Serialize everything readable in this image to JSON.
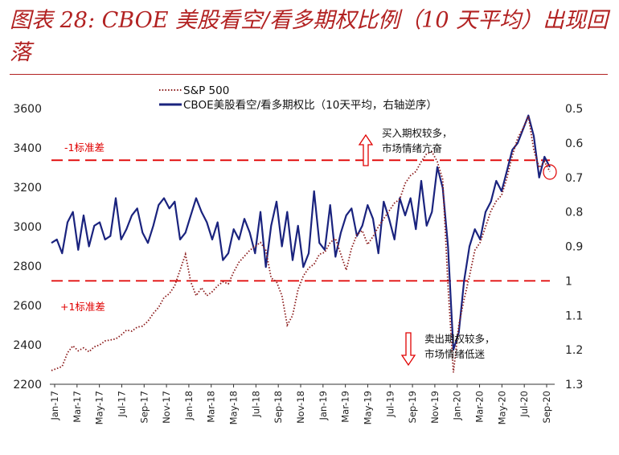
{
  "page": {
    "title": "图表 28: CBOE 美股看空/看多期权比例（10 天平均）出现回落"
  },
  "chart_data": {
    "type": "line",
    "title": "图表 28: CBOE 美股看空/看多期权比例（10 天平均）出现回落",
    "legend": [
      {
        "name": "S&P 500",
        "style": "dotted",
        "color": "#8b1a1a"
      },
      {
        "name": "CBOE美股看空/看多期权比（10天平均，右轴逆序）",
        "style": "solid",
        "color": "#1a237e"
      }
    ],
    "left_axis": {
      "min": 2200,
      "max": 3600,
      "ticks": [
        "3600",
        "3400",
        "3200",
        "3000",
        "2800",
        "2600",
        "2400",
        "2200"
      ]
    },
    "right_axis": {
      "min": 0.5,
      "max": 1.3,
      "inverted": true,
      "ticks": [
        "0.5",
        "0.6",
        "0.7",
        "0.8",
        "0.9",
        "1",
        "1.1",
        "1.2",
        "1.3"
      ]
    },
    "x_ticks": [
      "Jan-17",
      "Mar-17",
      "May-17",
      "Jul-17",
      "Sep-17",
      "Nov-17",
      "Jan-18",
      "Mar-18",
      "May-18",
      "Jul-18",
      "Sep-18",
      "Nov-18",
      "Jan-19",
      "Mar-19",
      "May-19",
      "Jul-19",
      "Sep-19",
      "Nov-19",
      "Jan-20",
      "Mar-20",
      "May-20",
      "Jul-20",
      "Sep-20"
    ],
    "reference_lines": [
      {
        "label": "-1标准差",
        "right_value": 0.65
      },
      {
        "label": "+1标准差",
        "right_value": 1.0
      }
    ],
    "annotations": {
      "top": [
        "买入期权较多，",
        "市场情绪亢奋"
      ],
      "bottom": [
        "卖出期权较多，",
        "市场情绪低迷"
      ]
    },
    "sp500": [
      [
        0,
        2270
      ],
      [
        1,
        2280
      ],
      [
        2,
        2290
      ],
      [
        3,
        2360
      ],
      [
        4,
        2395
      ],
      [
        5,
        2370
      ],
      [
        6,
        2385
      ],
      [
        7,
        2365
      ],
      [
        8,
        2390
      ],
      [
        9,
        2400
      ],
      [
        10,
        2420
      ],
      [
        11,
        2425
      ],
      [
        12,
        2430
      ],
      [
        13,
        2450
      ],
      [
        14,
        2475
      ],
      [
        15,
        2470
      ],
      [
        16,
        2490
      ],
      [
        17,
        2495
      ],
      [
        18,
        2520
      ],
      [
        19,
        2560
      ],
      [
        20,
        2590
      ],
      [
        21,
        2640
      ],
      [
        22,
        2660
      ],
      [
        23,
        2700
      ],
      [
        24,
        2780
      ],
      [
        25,
        2860
      ],
      [
        26,
        2720
      ],
      [
        27,
        2650
      ],
      [
        28,
        2690
      ],
      [
        29,
        2650
      ],
      [
        30,
        2670
      ],
      [
        31,
        2700
      ],
      [
        32,
        2720
      ],
      [
        33,
        2710
      ],
      [
        34,
        2770
      ],
      [
        35,
        2820
      ],
      [
        36,
        2850
      ],
      [
        37,
        2880
      ],
      [
        38,
        2900
      ],
      [
        39,
        2920
      ],
      [
        40,
        2880
      ],
      [
        41,
        2740
      ],
      [
        42,
        2720
      ],
      [
        43,
        2650
      ],
      [
        44,
        2500
      ],
      [
        45,
        2550
      ],
      [
        46,
        2680
      ],
      [
        47,
        2750
      ],
      [
        48,
        2790
      ],
      [
        49,
        2810
      ],
      [
        50,
        2860
      ],
      [
        51,
        2870
      ],
      [
        52,
        2920
      ],
      [
        53,
        2940
      ],
      [
        54,
        2860
      ],
      [
        55,
        2780
      ],
      [
        56,
        2890
      ],
      [
        57,
        2960
      ],
      [
        58,
        2980
      ],
      [
        59,
        2910
      ],
      [
        60,
        2950
      ],
      [
        61,
        3000
      ],
      [
        62,
        3040
      ],
      [
        63,
        3080
      ],
      [
        64,
        3120
      ],
      [
        65,
        3140
      ],
      [
        66,
        3220
      ],
      [
        67,
        3260
      ],
      [
        68,
        3280
      ],
      [
        69,
        3330
      ],
      [
        70,
        3370
      ],
      [
        71,
        3380
      ],
      [
        72,
        3330
      ],
      [
        73,
        3240
      ],
      [
        74,
        2700
      ],
      [
        75,
        2260
      ],
      [
        76,
        2500
      ],
      [
        77,
        2630
      ],
      [
        78,
        2750
      ],
      [
        79,
        2880
      ],
      [
        80,
        2920
      ],
      [
        81,
        3000
      ],
      [
        82,
        3080
      ],
      [
        83,
        3130
      ],
      [
        84,
        3160
      ],
      [
        85,
        3250
      ],
      [
        86,
        3360
      ],
      [
        87,
        3450
      ],
      [
        88,
        3500
      ],
      [
        89,
        3560
      ],
      [
        90,
        3390
      ],
      [
        91,
        3300
      ],
      [
        92,
        3330
      ],
      [
        93,
        3280
      ]
    ],
    "put_call_ratio": [
      [
        0,
        0.89
      ],
      [
        1,
        0.88
      ],
      [
        2,
        0.92
      ],
      [
        3,
        0.83
      ],
      [
        4,
        0.8
      ],
      [
        5,
        0.91
      ],
      [
        6,
        0.81
      ],
      [
        7,
        0.9
      ],
      [
        8,
        0.84
      ],
      [
        9,
        0.83
      ],
      [
        10,
        0.88
      ],
      [
        11,
        0.87
      ],
      [
        12,
        0.76
      ],
      [
        13,
        0.88
      ],
      [
        14,
        0.85
      ],
      [
        15,
        0.81
      ],
      [
        16,
        0.79
      ],
      [
        17,
        0.86
      ],
      [
        18,
        0.89
      ],
      [
        19,
        0.84
      ],
      [
        20,
        0.78
      ],
      [
        21,
        0.76
      ],
      [
        22,
        0.79
      ],
      [
        23,
        0.77
      ],
      [
        24,
        0.88
      ],
      [
        25,
        0.86
      ],
      [
        26,
        0.81
      ],
      [
        27,
        0.76
      ],
      [
        28,
        0.8
      ],
      [
        29,
        0.83
      ],
      [
        30,
        0.88
      ],
      [
        31,
        0.83
      ],
      [
        32,
        0.94
      ],
      [
        33,
        0.92
      ],
      [
        34,
        0.85
      ],
      [
        35,
        0.88
      ],
      [
        36,
        0.82
      ],
      [
        37,
        0.86
      ],
      [
        38,
        0.92
      ],
      [
        39,
        0.8
      ],
      [
        40,
        0.96
      ],
      [
        41,
        0.84
      ],
      [
        42,
        0.77
      ],
      [
        43,
        0.9
      ],
      [
        44,
        0.8
      ],
      [
        45,
        0.94
      ],
      [
        46,
        0.84
      ],
      [
        47,
        0.96
      ],
      [
        48,
        0.92
      ],
      [
        49,
        0.74
      ],
      [
        50,
        0.89
      ],
      [
        51,
        0.91
      ],
      [
        52,
        0.78
      ],
      [
        53,
        0.93
      ],
      [
        54,
        0.86
      ],
      [
        55,
        0.81
      ],
      [
        56,
        0.79
      ],
      [
        57,
        0.87
      ],
      [
        58,
        0.84
      ],
      [
        59,
        0.78
      ],
      [
        60,
        0.82
      ],
      [
        61,
        0.92
      ],
      [
        62,
        0.77
      ],
      [
        63,
        0.82
      ],
      [
        64,
        0.88
      ],
      [
        65,
        0.76
      ],
      [
        66,
        0.81
      ],
      [
        67,
        0.76
      ],
      [
        68,
        0.85
      ],
      [
        69,
        0.71
      ],
      [
        70,
        0.84
      ],
      [
        71,
        0.8
      ],
      [
        72,
        0.67
      ],
      [
        73,
        0.73
      ],
      [
        74,
        0.9
      ],
      [
        75,
        1.2
      ],
      [
        76,
        1.15
      ],
      [
        77,
        1.0
      ],
      [
        78,
        0.9
      ],
      [
        79,
        0.85
      ],
      [
        80,
        0.88
      ],
      [
        81,
        0.8
      ],
      [
        82,
        0.77
      ],
      [
        83,
        0.71
      ],
      [
        84,
        0.74
      ],
      [
        85,
        0.68
      ],
      [
        86,
        0.62
      ],
      [
        87,
        0.6
      ],
      [
        88,
        0.56
      ],
      [
        89,
        0.52
      ],
      [
        90,
        0.58
      ],
      [
        91,
        0.7
      ],
      [
        92,
        0.64
      ],
      [
        93,
        0.67
      ]
    ]
  }
}
